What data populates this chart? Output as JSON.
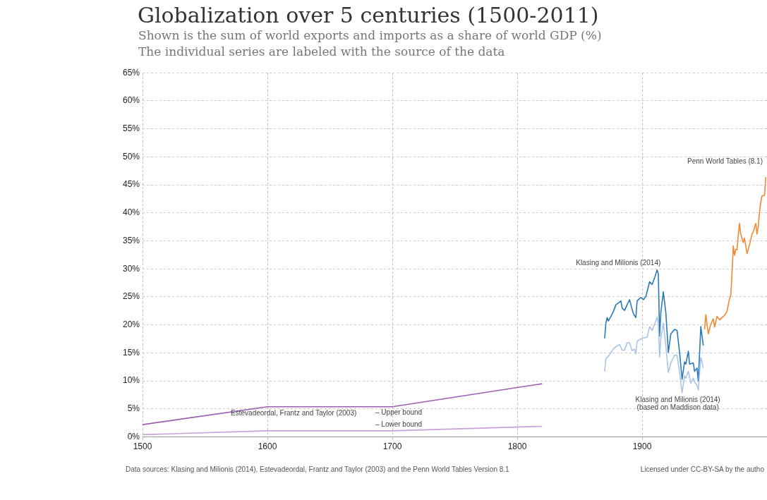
{
  "chart_data": {
    "type": "line",
    "title": "Globalization over 5 centuries (1500-2011)",
    "subtitle": "Shown is the sum of world exports and imports as a share of world GDP (%)\nThe individual series are labeled with the source of the data",
    "xlim": [
      1500,
      2000
    ],
    "xticks": [
      1500,
      1600,
      1700,
      1800,
      1900
    ],
    "ylim": [
      0,
      65
    ],
    "yticks": [
      {
        "value": 0,
        "label": "0%"
      },
      {
        "value": 5,
        "label": "5%"
      },
      {
        "value": 10,
        "label": "10%"
      },
      {
        "value": 15,
        "label": "15%"
      },
      {
        "value": 20,
        "label": "20%"
      },
      {
        "value": 25,
        "label": "25%"
      },
      {
        "value": 30,
        "label": "30%"
      },
      {
        "value": 35,
        "label": "35%"
      },
      {
        "value": 40,
        "label": "40%"
      },
      {
        "value": 45,
        "label": "45%"
      },
      {
        "value": 50,
        "label": "50%"
      },
      {
        "value": 55,
        "label": "55%"
      },
      {
        "value": 60,
        "label": "60%"
      },
      {
        "value": 65,
        "label": "65%"
      }
    ],
    "grid": true,
    "legend": false,
    "marker": "none",
    "line_style": "solid",
    "series": [
      {
        "name": "– Upper bound",
        "color": "#9b5fb1",
        "x": [
          1500,
          1600,
          1700,
          1820
        ],
        "values": [
          2.2,
          5.4,
          5.4,
          9.5
        ]
      },
      {
        "name": "– Lower bound",
        "color": "#c9a0d8",
        "x": [
          1500,
          1600,
          1700,
          1820
        ],
        "values": [
          0.4,
          1.1,
          1.1,
          1.9
        ]
      },
      {
        "name": "Klasing and Milionis (2014) (based on Maddison data)",
        "color": "#a9c4e8",
        "x": [
          1870,
          1871,
          1873,
          1877,
          1879,
          1882,
          1884,
          1886,
          1888,
          1890,
          1892,
          1894,
          1895,
          1896,
          1900,
          1904,
          1906,
          1908,
          1910,
          1912,
          1913,
          1914,
          1915,
          1917,
          1919,
          1921,
          1923,
          1926,
          1928,
          1930,
          1932,
          1934,
          1935,
          1937,
          1939,
          1941,
          1942,
          1944,
          1945,
          1947,
          1948,
          1949
        ],
        "values": [
          11.7,
          14.0,
          14.4,
          15.7,
          16.1,
          16.5,
          15.5,
          15.5,
          16.8,
          16.8,
          15.4,
          15.7,
          14.8,
          17.1,
          17.6,
          17.8,
          19.7,
          19.0,
          20.1,
          21.4,
          20.1,
          14.2,
          17.6,
          20.3,
          16.3,
          11.5,
          13.2,
          14.6,
          14.6,
          11.5,
          7.9,
          10.9,
          10.5,
          11.7,
          9.6,
          10.5,
          9.8,
          9.2,
          8.4,
          14.2,
          13.4,
          12.3
        ]
      },
      {
        "name": "Klasing and Milionis (2014)",
        "color": "#2a78b8",
        "x": [
          1870,
          1871,
          1872,
          1873,
          1875,
          1877,
          1879,
          1881,
          1883,
          1884,
          1886,
          1888,
          1890,
          1891,
          1893,
          1895,
          1896,
          1899,
          1901,
          1903,
          1906,
          1908,
          1910,
          1912,
          1913,
          1914,
          1915,
          1917,
          1919,
          1921,
          1923,
          1926,
          1928,
          1930,
          1932,
          1934,
          1935,
          1937,
          1938,
          1941,
          1942,
          1944,
          1945,
          1947,
          1948,
          1949
        ],
        "values": [
          17.6,
          20.3,
          21.3,
          20.7,
          21.5,
          22.4,
          23.6,
          23.9,
          24.3,
          23.0,
          22.6,
          23.6,
          24.5,
          23.6,
          22.0,
          21.3,
          24.3,
          24.9,
          24.5,
          25.1,
          27.7,
          27.2,
          28.4,
          29.8,
          29.1,
          18.0,
          22.2,
          25.9,
          22.2,
          15.1,
          18.4,
          19.2,
          19.0,
          15.1,
          10.3,
          13.4,
          13.0,
          15.3,
          13.0,
          13.2,
          11.7,
          12.3,
          10.0,
          19.7,
          18.0,
          16.3
        ]
      },
      {
        "name": "Penn World Tables (8.1)",
        "color": "#f2892e",
        "x": [
          1950,
          1951,
          1953,
          1955,
          1957,
          1958,
          1960,
          1962,
          1966,
          1968,
          1970,
          1971,
          1972,
          1973,
          1974,
          1975,
          1976,
          1977,
          1978,
          1979,
          1981,
          1982,
          1984,
          1986,
          1988,
          1989,
          1991,
          1992,
          1993,
          1994,
          1995,
          1996,
          1997,
          1998,
          1999
        ],
        "values": [
          19.2,
          21.8,
          18.4,
          20.1,
          21.1,
          19.6,
          21.5,
          20.9,
          21.7,
          22.4,
          24.7,
          25.3,
          29.3,
          34.1,
          32.4,
          33.5,
          33.4,
          36.0,
          38.1,
          36.2,
          34.7,
          35.5,
          32.7,
          34.3,
          36.2,
          36.6,
          38.1,
          36.2,
          37.6,
          40.1,
          41.9,
          43.0,
          43.1,
          43.1,
          46.4
        ]
      }
    ],
    "annotations": [
      "Estevadeordal, Frantz and Taylor (2003)",
      "Data sources: Klasing and Milionis (2014), Estevadeordal, Frantz and Taylor (2003) and the Penn World Tables Version 8.1",
      "Licensed under CC-BY-SA by the autho"
    ]
  }
}
